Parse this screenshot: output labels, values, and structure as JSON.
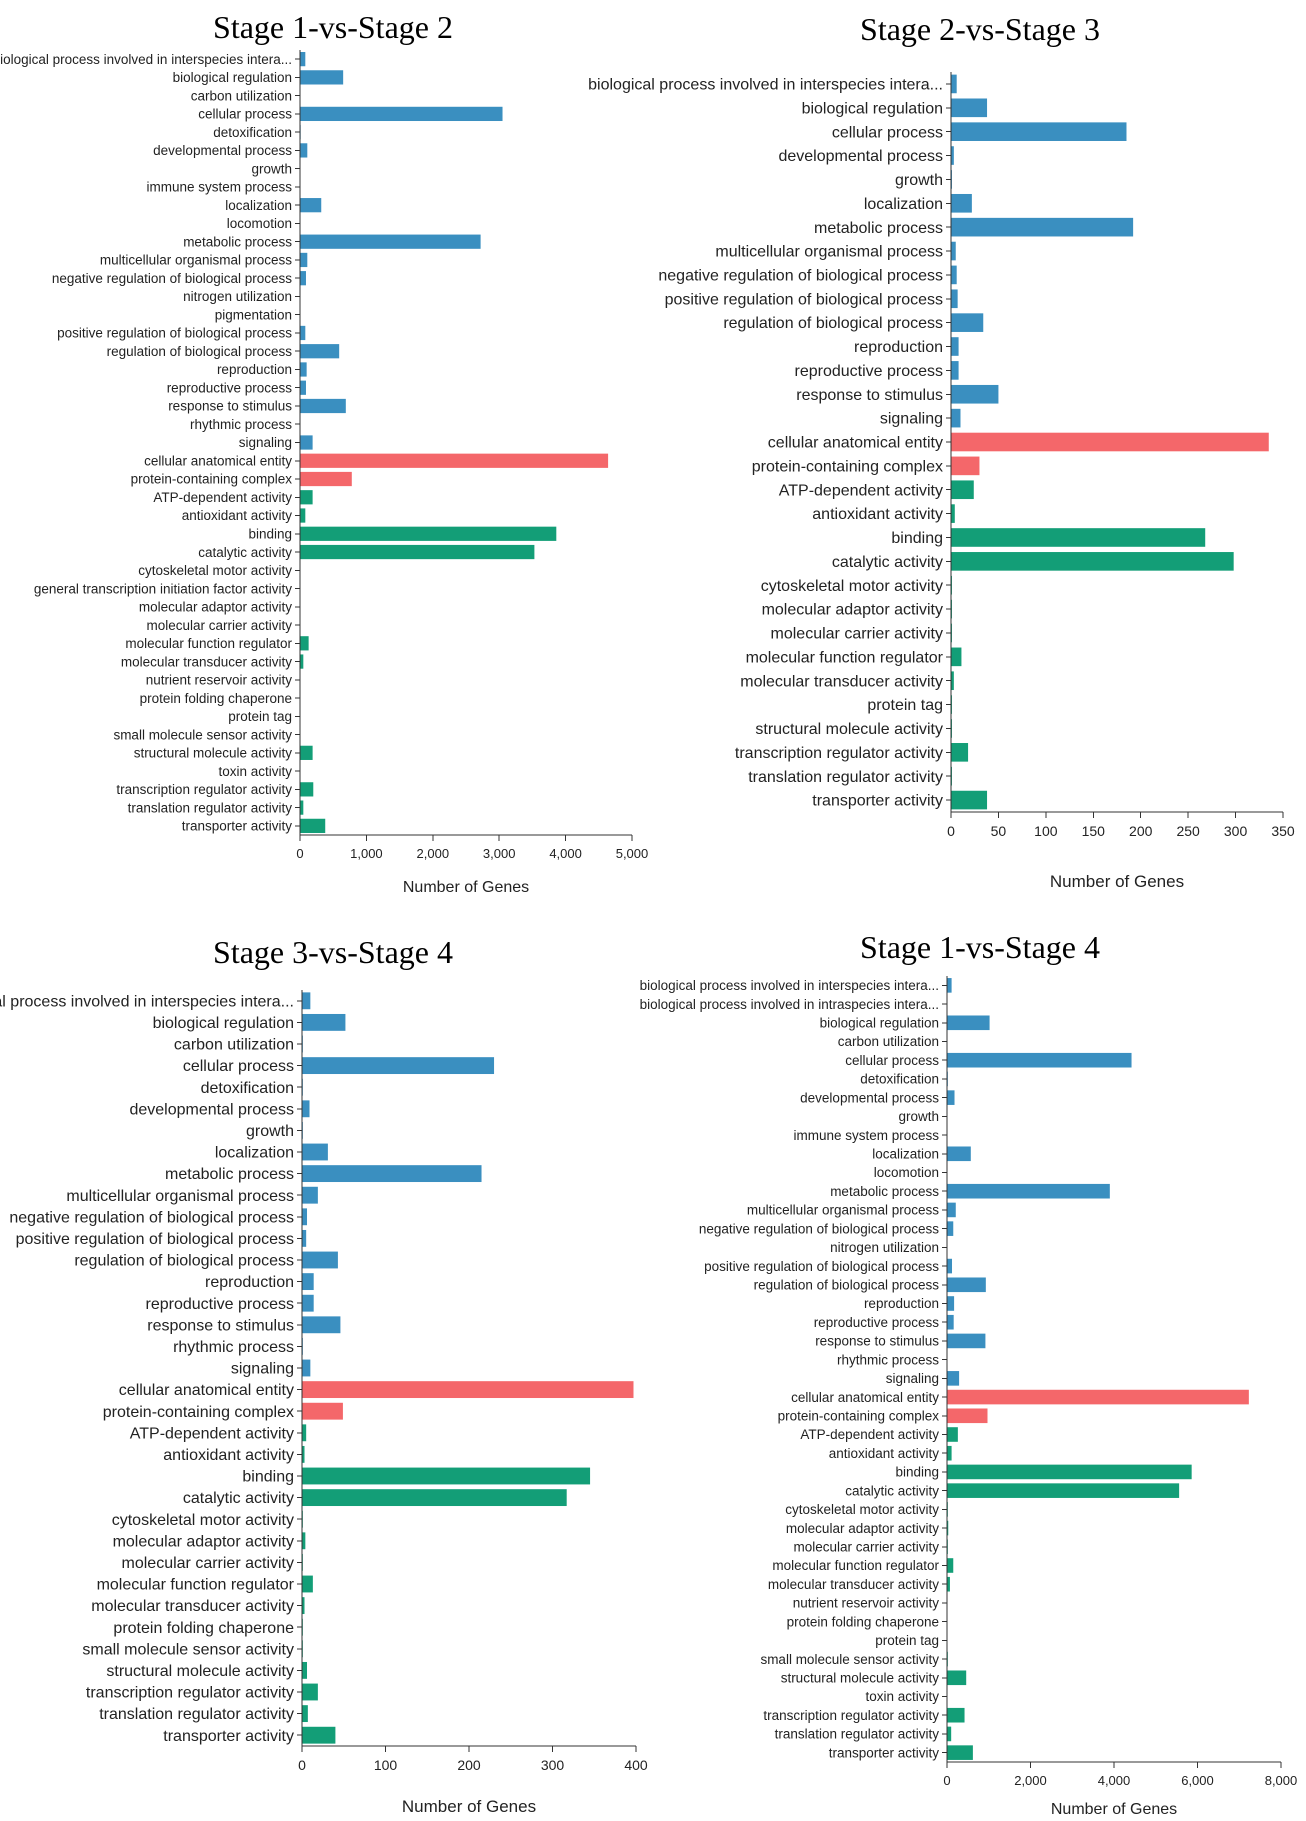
{
  "colors": {
    "biological_process": "#3a8fc0",
    "cellular_component": "#f4676a",
    "molecular_function": "#139e77"
  },
  "chart_data": [
    {
      "type": "bar",
      "orientation": "horizontal",
      "title": "Stage 1-vs-Stage 2",
      "xlabel": "Number of Genes",
      "xlim": [
        0,
        5000
      ],
      "ticks": [
        "0",
        "1,000",
        "2,000",
        "3,000",
        "4,000",
        "5,000"
      ],
      "categories": [
        "biological process involved in interspecies intera...",
        "biological regulation",
        "carbon utilization",
        "cellular process",
        "detoxification",
        "developmental process",
        "growth",
        "immune system process",
        "localization",
        "locomotion",
        "metabolic process",
        "multicellular organismal process",
        "negative regulation of biological process",
        "nitrogen utilization",
        "pigmentation",
        "positive regulation of biological process",
        "regulation of biological process",
        "reproduction",
        "reproductive process",
        "response to stimulus",
        "rhythmic process",
        "signaling",
        "cellular anatomical entity",
        "protein-containing complex",
        "ATP-dependent activity",
        "antioxidant activity",
        "binding",
        "catalytic activity",
        "cytoskeletal motor activity",
        "general transcription initiation factor activity",
        "molecular adaptor activity",
        "molecular carrier activity",
        "molecular function regulator",
        "molecular transducer activity",
        "nutrient reservoir activity",
        "protein folding chaperone",
        "protein tag",
        "small molecule sensor activity",
        "structural molecule activity",
        "toxin activity",
        "transcription regulator activity",
        "translation regulator activity",
        "transporter activity"
      ],
      "values": [
        80,
        650,
        5,
        3050,
        10,
        110,
        4,
        3,
        320,
        5,
        2720,
        110,
        90,
        3,
        2,
        80,
        590,
        100,
        90,
        690,
        4,
        190,
        4640,
        780,
        190,
        80,
        3860,
        3530,
        6,
        2,
        7,
        5,
        130,
        50,
        4,
        3,
        2,
        6,
        190,
        4,
        200,
        50,
        380
      ],
      "groups": [
        "bp",
        "bp",
        "bp",
        "bp",
        "bp",
        "bp",
        "bp",
        "bp",
        "bp",
        "bp",
        "bp",
        "bp",
        "bp",
        "bp",
        "bp",
        "bp",
        "bp",
        "bp",
        "bp",
        "bp",
        "bp",
        "bp",
        "cc",
        "cc",
        "mf",
        "mf",
        "mf",
        "mf",
        "mf",
        "mf",
        "mf",
        "mf",
        "mf",
        "mf",
        "mf",
        "mf",
        "mf",
        "mf",
        "mf",
        "mf",
        "mf",
        "mf",
        "mf"
      ]
    },
    {
      "type": "bar",
      "orientation": "horizontal",
      "title": "Stage 2-vs-Stage 3",
      "xlabel": "Number of Genes",
      "xlim": [
        0,
        350
      ],
      "ticks": [
        "0",
        "50",
        "100",
        "150",
        "200",
        "250",
        "300",
        "350"
      ],
      "categories": [
        "biological process involved in interspecies intera...",
        "biological regulation",
        "cellular process",
        "developmental process",
        "growth",
        "localization",
        "metabolic process",
        "multicellular organismal process",
        "negative regulation of biological process",
        "positive regulation of biological process",
        "regulation of biological process",
        "reproduction",
        "reproductive process",
        "response to stimulus",
        "signaling",
        "cellular anatomical entity",
        "protein-containing complex",
        "ATP-dependent activity",
        "antioxidant activity",
        "binding",
        "catalytic activity",
        "cytoskeletal motor activity",
        "molecular adaptor activity",
        "molecular carrier activity",
        "molecular function regulator",
        "molecular transducer activity",
        "protein tag",
        "structural molecule activity",
        "transcription regulator activity",
        "translation regulator activity",
        "transporter activity"
      ],
      "values": [
        6,
        38,
        185,
        3,
        1,
        22,
        192,
        5,
        6,
        7,
        34,
        8,
        8,
        50,
        10,
        335,
        30,
        24,
        4,
        268,
        298,
        1,
        1,
        1,
        11,
        3,
        1,
        1,
        18,
        1,
        38
      ],
      "groups": [
        "bp",
        "bp",
        "bp",
        "bp",
        "bp",
        "bp",
        "bp",
        "bp",
        "bp",
        "bp",
        "bp",
        "bp",
        "bp",
        "bp",
        "bp",
        "cc",
        "cc",
        "mf",
        "mf",
        "mf",
        "mf",
        "mf",
        "mf",
        "mf",
        "mf",
        "mf",
        "mf",
        "mf",
        "mf",
        "mf",
        "mf"
      ]
    },
    {
      "type": "bar",
      "orientation": "horizontal",
      "title": "Stage 3-vs-Stage 4",
      "xlabel": "Number of Genes",
      "xlim": [
        0,
        400
      ],
      "ticks": [
        "0",
        "100",
        "200",
        "300",
        "400"
      ],
      "categories": [
        "biological process involved in interspecies intera...",
        "biological regulation",
        "carbon utilization",
        "cellular process",
        "detoxification",
        "developmental process",
        "growth",
        "localization",
        "metabolic process",
        "multicellular organismal process",
        "negative regulation of biological process",
        "positive regulation of biological process",
        "regulation of biological process",
        "reproduction",
        "reproductive process",
        "response to stimulus",
        "rhythmic process",
        "signaling",
        "cellular anatomical entity",
        "protein-containing complex",
        "ATP-dependent activity",
        "antioxidant activity",
        "binding",
        "catalytic activity",
        "cytoskeletal motor activity",
        "molecular adaptor activity",
        "molecular carrier activity",
        "molecular function regulator",
        "molecular transducer activity",
        "protein folding chaperone",
        "small molecule sensor activity",
        "structural molecule activity",
        "transcription regulator activity",
        "translation regulator activity",
        "transporter activity"
      ],
      "values": [
        10,
        52,
        1,
        230,
        1,
        9,
        1,
        31,
        215,
        19,
        6,
        5,
        43,
        14,
        14,
        46,
        1,
        10,
        397,
        49,
        5,
        3,
        345,
        317,
        1,
        4,
        1,
        13,
        3,
        1,
        1,
        6,
        19,
        7,
        40
      ],
      "groups": [
        "bp",
        "bp",
        "bp",
        "bp",
        "bp",
        "bp",
        "bp",
        "bp",
        "bp",
        "bp",
        "bp",
        "bp",
        "bp",
        "bp",
        "bp",
        "bp",
        "bp",
        "bp",
        "cc",
        "cc",
        "mf",
        "mf",
        "mf",
        "mf",
        "mf",
        "mf",
        "mf",
        "mf",
        "mf",
        "mf",
        "mf",
        "mf",
        "mf",
        "mf",
        "mf"
      ]
    },
    {
      "type": "bar",
      "orientation": "horizontal",
      "title": "Stage 1-vs-Stage 4",
      "xlabel": "Number of Genes",
      "xlim": [
        0,
        8000
      ],
      "ticks": [
        "0",
        "2,000",
        "4,000",
        "6,000",
        "8,000"
      ],
      "categories": [
        "biological process involved in interspecies intera...",
        "biological process involved in intraspecies intera...",
        "biological regulation",
        "carbon utilization",
        "cellular process",
        "detoxification",
        "developmental process",
        "growth",
        "immune system process",
        "localization",
        "locomotion",
        "metabolic process",
        "multicellular organismal process",
        "negative regulation of biological process",
        "nitrogen utilization",
        "positive regulation of biological process",
        "regulation of biological process",
        "reproduction",
        "reproductive process",
        "response to stimulus",
        "rhythmic process",
        "signaling",
        "cellular anatomical entity",
        "protein-containing complex",
        "ATP-dependent activity",
        "antioxidant activity",
        "binding",
        "catalytic activity",
        "cytoskeletal motor activity",
        "molecular adaptor activity",
        "molecular carrier activity",
        "molecular function regulator",
        "molecular transducer activity",
        "nutrient reservoir activity",
        "protein folding chaperone",
        "protein tag",
        "small molecule sensor activity",
        "structural molecule activity",
        "toxin activity",
        "transcription regulator activity",
        "translation regulator activity",
        "transporter activity"
      ],
      "values": [
        110,
        10,
        1020,
        10,
        4420,
        20,
        180,
        10,
        10,
        570,
        10,
        3900,
        210,
        150,
        10,
        120,
        930,
        170,
        160,
        920,
        10,
        290,
        7230,
        970,
        260,
        110,
        5860,
        5560,
        20,
        30,
        20,
        150,
        70,
        10,
        10,
        10,
        20,
        460,
        10,
        420,
        100,
        620
      ],
      "groups": [
        "bp",
        "bp",
        "bp",
        "bp",
        "bp",
        "bp",
        "bp",
        "bp",
        "bp",
        "bp",
        "bp",
        "bp",
        "bp",
        "bp",
        "bp",
        "bp",
        "bp",
        "bp",
        "bp",
        "bp",
        "bp",
        "bp",
        "cc",
        "cc",
        "mf",
        "mf",
        "mf",
        "mf",
        "mf",
        "mf",
        "mf",
        "mf",
        "mf",
        "mf",
        "mf",
        "mf",
        "mf",
        "mf",
        "mf",
        "mf",
        "mf",
        "mf"
      ]
    }
  ]
}
